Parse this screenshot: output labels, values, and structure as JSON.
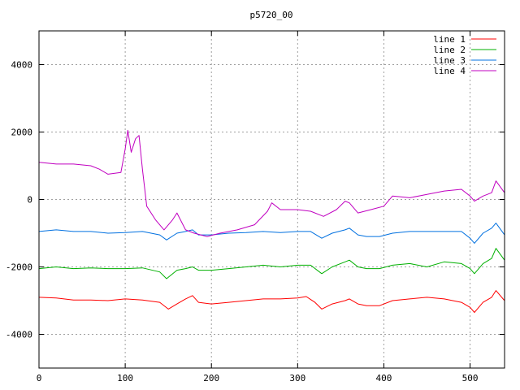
{
  "chart_data": {
    "type": "line",
    "title": "p5720_00",
    "xlabel": "",
    "ylabel": "",
    "xlim": [
      0,
      540
    ],
    "ylim": [
      -5000,
      5000
    ],
    "x_ticks": [
      0,
      100,
      200,
      300,
      400,
      500
    ],
    "y_ticks": [
      -4000,
      -2000,
      0,
      2000,
      4000
    ],
    "grid": true,
    "legend_position": "top-right",
    "series": [
      {
        "name": "line 1",
        "color": "#ff0000",
        "points": [
          [
            0,
            -2900
          ],
          [
            20,
            -2920
          ],
          [
            40,
            -2980
          ],
          [
            60,
            -2980
          ],
          [
            80,
            -3000
          ],
          [
            100,
            -2950
          ],
          [
            120,
            -2980
          ],
          [
            140,
            -3050
          ],
          [
            150,
            -3250
          ],
          [
            160,
            -3100
          ],
          [
            170,
            -2950
          ],
          [
            178,
            -2850
          ],
          [
            185,
            -3050
          ],
          [
            200,
            -3100
          ],
          [
            220,
            -3050
          ],
          [
            240,
            -3000
          ],
          [
            260,
            -2950
          ],
          [
            280,
            -2950
          ],
          [
            300,
            -2920
          ],
          [
            310,
            -2880
          ],
          [
            320,
            -3050
          ],
          [
            328,
            -3250
          ],
          [
            340,
            -3100
          ],
          [
            355,
            -3000
          ],
          [
            360,
            -2950
          ],
          [
            370,
            -3100
          ],
          [
            380,
            -3150
          ],
          [
            395,
            -3150
          ],
          [
            410,
            -3000
          ],
          [
            430,
            -2950
          ],
          [
            450,
            -2900
          ],
          [
            470,
            -2950
          ],
          [
            490,
            -3050
          ],
          [
            500,
            -3200
          ],
          [
            505,
            -3350
          ],
          [
            515,
            -3050
          ],
          [
            525,
            -2900
          ],
          [
            530,
            -2700
          ],
          [
            540,
            -3000
          ]
        ]
      },
      {
        "name": "line 2",
        "color": "#00b000",
        "points": [
          [
            0,
            -2050
          ],
          [
            20,
            -2000
          ],
          [
            40,
            -2050
          ],
          [
            60,
            -2030
          ],
          [
            80,
            -2050
          ],
          [
            100,
            -2050
          ],
          [
            120,
            -2030
          ],
          [
            140,
            -2150
          ],
          [
            148,
            -2350
          ],
          [
            160,
            -2100
          ],
          [
            170,
            -2050
          ],
          [
            178,
            -2000
          ],
          [
            185,
            -2100
          ],
          [
            200,
            -2100
          ],
          [
            220,
            -2050
          ],
          [
            240,
            -2000
          ],
          [
            260,
            -1950
          ],
          [
            280,
            -2000
          ],
          [
            300,
            -1950
          ],
          [
            315,
            -1950
          ],
          [
            328,
            -2200
          ],
          [
            340,
            -2000
          ],
          [
            355,
            -1850
          ],
          [
            360,
            -1800
          ],
          [
            370,
            -2000
          ],
          [
            380,
            -2050
          ],
          [
            395,
            -2050
          ],
          [
            410,
            -1950
          ],
          [
            430,
            -1900
          ],
          [
            450,
            -2000
          ],
          [
            470,
            -1850
          ],
          [
            490,
            -1900
          ],
          [
            500,
            -2050
          ],
          [
            505,
            -2200
          ],
          [
            515,
            -1900
          ],
          [
            525,
            -1750
          ],
          [
            530,
            -1450
          ],
          [
            540,
            -1800
          ]
        ]
      },
      {
        "name": "line 3",
        "color": "#0070e0",
        "points": [
          [
            0,
            -950
          ],
          [
            20,
            -900
          ],
          [
            40,
            -950
          ],
          [
            60,
            -950
          ],
          [
            80,
            -1000
          ],
          [
            100,
            -980
          ],
          [
            120,
            -950
          ],
          [
            140,
            -1050
          ],
          [
            148,
            -1200
          ],
          [
            160,
            -1000
          ],
          [
            170,
            -950
          ],
          [
            178,
            -900
          ],
          [
            185,
            -1050
          ],
          [
            200,
            -1050
          ],
          [
            220,
            -1000
          ],
          [
            240,
            -980
          ],
          [
            260,
            -950
          ],
          [
            280,
            -980
          ],
          [
            300,
            -950
          ],
          [
            315,
            -950
          ],
          [
            328,
            -1150
          ],
          [
            340,
            -1000
          ],
          [
            355,
            -900
          ],
          [
            360,
            -850
          ],
          [
            370,
            -1050
          ],
          [
            380,
            -1100
          ],
          [
            395,
            -1100
          ],
          [
            410,
            -1000
          ],
          [
            430,
            -950
          ],
          [
            450,
            -950
          ],
          [
            470,
            -950
          ],
          [
            490,
            -950
          ],
          [
            500,
            -1150
          ],
          [
            505,
            -1300
          ],
          [
            515,
            -1000
          ],
          [
            525,
            -850
          ],
          [
            530,
            -700
          ],
          [
            540,
            -1050
          ]
        ]
      },
      {
        "name": "line 4",
        "color": "#c000c0",
        "points": [
          [
            0,
            1100
          ],
          [
            20,
            1050
          ],
          [
            40,
            1050
          ],
          [
            60,
            1000
          ],
          [
            70,
            900
          ],
          [
            80,
            750
          ],
          [
            95,
            800
          ],
          [
            100,
            1500
          ],
          [
            103,
            2050
          ],
          [
            107,
            1400
          ],
          [
            112,
            1800
          ],
          [
            116,
            1900
          ],
          [
            120,
            900
          ],
          [
            125,
            -200
          ],
          [
            135,
            -600
          ],
          [
            145,
            -900
          ],
          [
            155,
            -600
          ],
          [
            160,
            -400
          ],
          [
            170,
            -900
          ],
          [
            180,
            -1000
          ],
          [
            195,
            -1100
          ],
          [
            210,
            -1000
          ],
          [
            230,
            -900
          ],
          [
            250,
            -750
          ],
          [
            265,
            -350
          ],
          [
            270,
            -100
          ],
          [
            280,
            -300
          ],
          [
            300,
            -300
          ],
          [
            315,
            -350
          ],
          [
            330,
            -500
          ],
          [
            345,
            -300
          ],
          [
            355,
            -50
          ],
          [
            360,
            -100
          ],
          [
            370,
            -400
          ],
          [
            385,
            -300
          ],
          [
            400,
            -200
          ],
          [
            410,
            100
          ],
          [
            430,
            50
          ],
          [
            450,
            150
          ],
          [
            470,
            250
          ],
          [
            490,
            300
          ],
          [
            500,
            100
          ],
          [
            505,
            -50
          ],
          [
            515,
            100
          ],
          [
            525,
            200
          ],
          [
            530,
            550
          ],
          [
            540,
            200
          ]
        ]
      }
    ]
  }
}
